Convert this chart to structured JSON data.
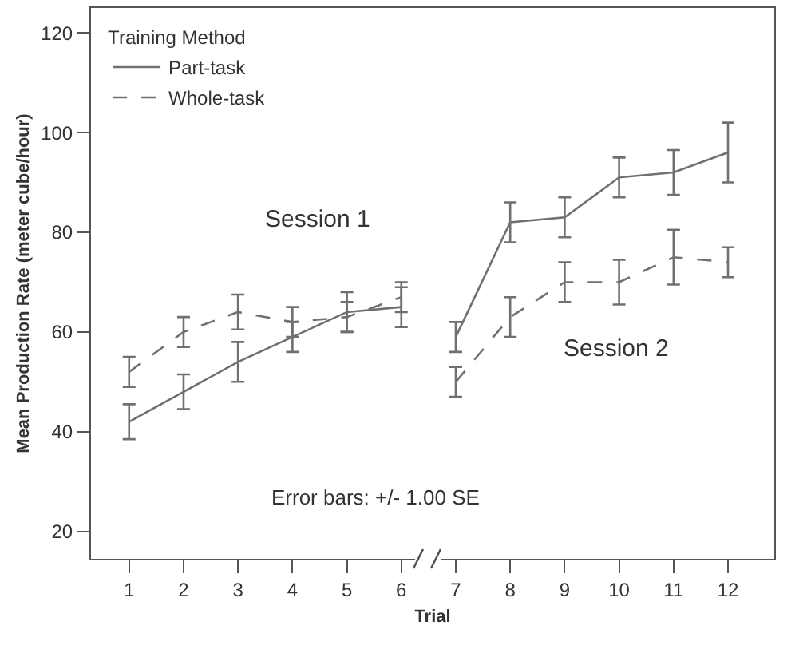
{
  "chart_data": {
    "type": "line",
    "xlabel": "Trial",
    "ylabel": "Mean Production Rate (meter cube/hour)",
    "legend_title": "Training Method",
    "xlim": [
      0.3,
      12.85
    ],
    "xticks": [
      1,
      2,
      3,
      4,
      5,
      6,
      7,
      8,
      9,
      10,
      11,
      12
    ],
    "ylim": [
      14.5,
      125
    ],
    "yticks": [
      20,
      40,
      60,
      80,
      100,
      120
    ],
    "grid": false,
    "legend": "top left",
    "marker": "none",
    "series": [
      {
        "name": "Part-task",
        "color": "#707070",
        "line_style": "solid",
        "x": [
          1,
          2,
          3,
          4,
          5,
          6
        ],
        "values": [
          42,
          48,
          54,
          59,
          64,
          65
        ],
        "errors": [
          3.5,
          3.5,
          4,
          3,
          4,
          4
        ]
      },
      {
        "name": "Whole-task",
        "color": "#707070",
        "line_style": "dashed",
        "x": [
          1,
          2,
          3,
          4,
          5,
          6
        ],
        "values": [
          52,
          60,
          64,
          62,
          63,
          67
        ],
        "errors": [
          3,
          3,
          3.5,
          3,
          3,
          3
        ]
      },
      {
        "color": "#707070",
        "line_style": "solid",
        "x": [
          7,
          8,
          9,
          10,
          11,
          12
        ],
        "values": [
          59,
          82,
          83,
          91,
          92,
          96
        ],
        "errors": [
          3,
          4,
          4,
          4,
          4.5,
          6
        ]
      },
      {
        "color": "#707070",
        "line_style": "dashed",
        "x": [
          7,
          8,
          9,
          10,
          11,
          12
        ],
        "values": [
          50,
          63,
          70,
          70,
          75,
          74
        ],
        "errors": [
          3,
          4,
          4,
          4.5,
          5.5,
          3
        ]
      }
    ],
    "annotations": [
      "Session 1",
      "Session 2",
      "Error bars: +/- 1.00 SE"
    ]
  }
}
